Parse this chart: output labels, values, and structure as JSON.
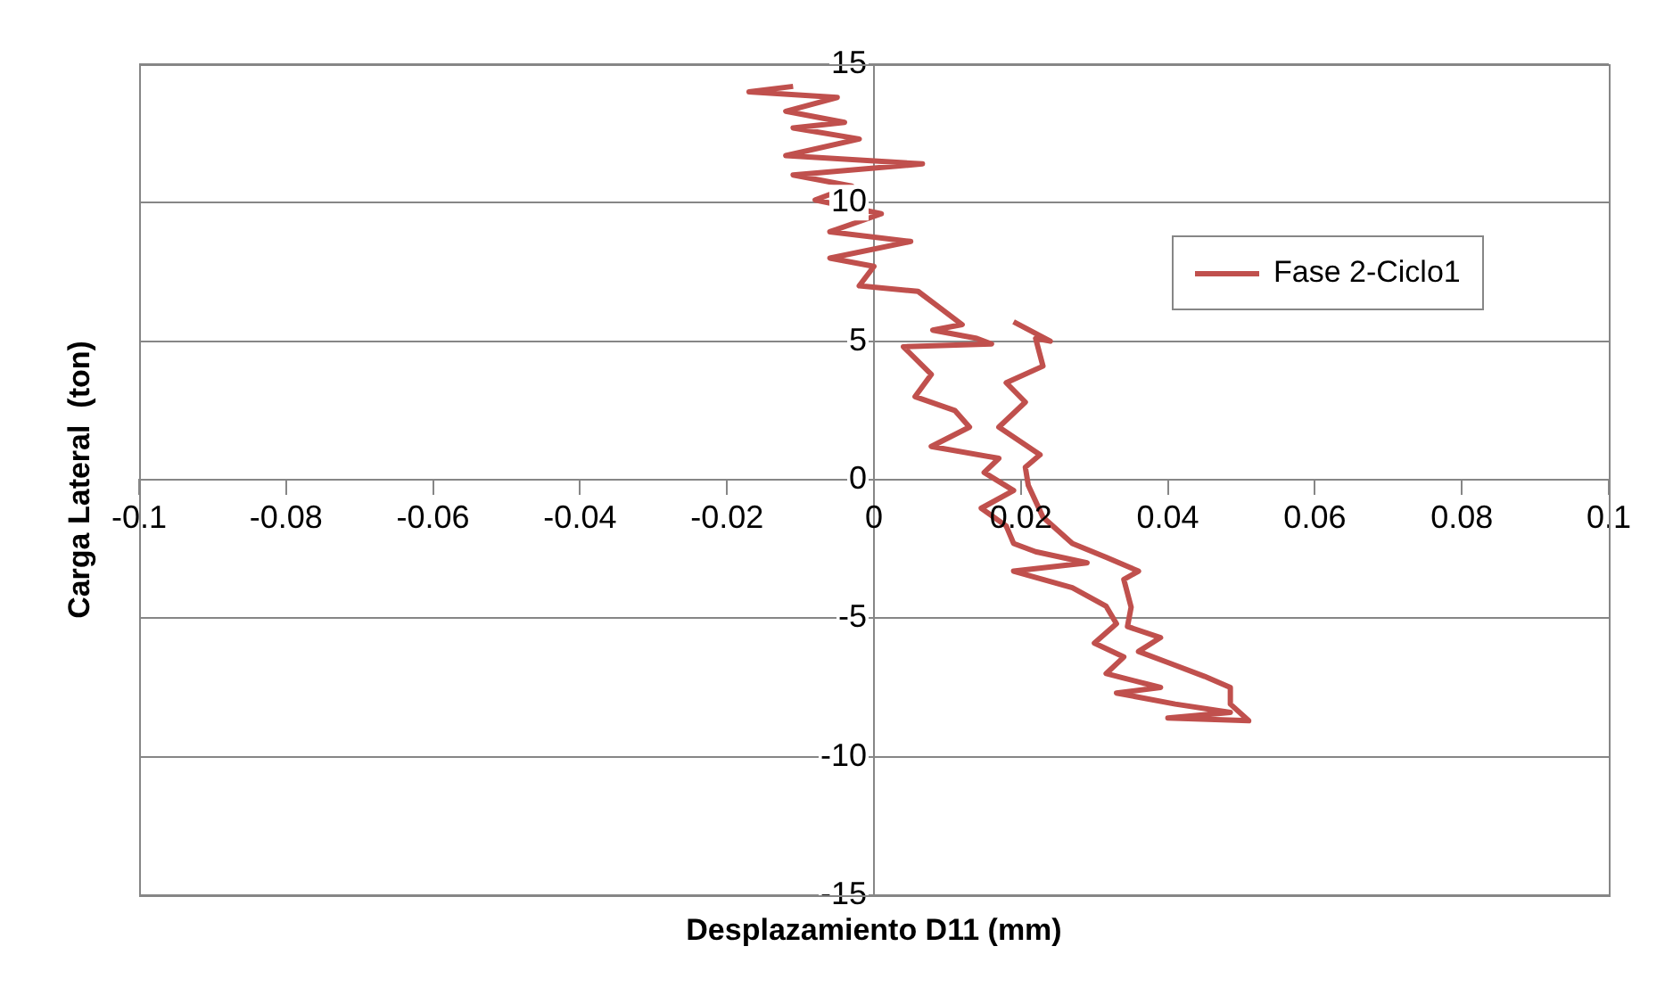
{
  "chart_data": {
    "type": "line",
    "xlabel": "Desplazamiento D11 (mm)",
    "ylabel": "Carga Lateral  (ton)",
    "xlim": [
      -0.1,
      0.1
    ],
    "ylim": [
      -15,
      15
    ],
    "xticks": [
      {
        "value": -0.1,
        "label": "-0.1"
      },
      {
        "value": -0.08,
        "label": "-0.08"
      },
      {
        "value": -0.06,
        "label": "-0.06"
      },
      {
        "value": -0.04,
        "label": "-0.04"
      },
      {
        "value": -0.02,
        "label": "-0.02"
      },
      0,
      {
        "value": 0.02,
        "label": "0.02"
      },
      {
        "value": 0.04,
        "label": "0.04"
      },
      {
        "value": 0.06,
        "label": "0.06"
      },
      {
        "value": 0.08,
        "label": "0.08"
      },
      {
        "value": 0.1,
        "label": "0.1"
      }
    ],
    "yticks": [
      -15,
      -10,
      -5,
      0,
      5,
      10,
      15
    ],
    "grid": "y",
    "legend": "right",
    "marker": "none",
    "line_style": "solid",
    "series": [
      {
        "name": "Fase 2-Ciclo1",
        "color": "#c0504d",
        "x": [
          -0.011,
          -0.017,
          -0.005,
          -0.012,
          -0.004,
          -0.011,
          -0.002,
          -0.012,
          0.0066,
          -0.011,
          -0.003,
          -0.008,
          0.001,
          -0.006,
          0.005,
          -0.006,
          0,
          -0.002,
          0.006,
          0.009,
          0.012,
          0.008,
          0.014,
          0.016,
          0.004,
          0.0078,
          0.0056,
          0.011,
          0.013,
          0.0078,
          0.017,
          0.015,
          0.019,
          0.0146,
          0.018,
          0.019,
          0.022,
          0.029,
          0.019,
          0.027,
          0.0316,
          0.033,
          0.03,
          0.034,
          0.0316,
          0.039,
          0.033,
          0.041,
          0.0485,
          0.04,
          0.051,
          0.0485,
          0.0485,
          0.045,
          0.04,
          0.036,
          0.039,
          0.0345,
          0.035,
          0.034,
          0.036,
          0.0316,
          0.027,
          0.023,
          0.021,
          0.0206,
          0.0226,
          0.017,
          0.0206,
          0.018,
          0.023,
          0.022,
          0.024,
          0.019
        ],
        "values": [
          14.2,
          14.0,
          13.8,
          13.3,
          12.9,
          12.7,
          12.3,
          11.7,
          11.4,
          11.0,
          10.6,
          10.1,
          9.6,
          8.95,
          8.6,
          8.0,
          7.7,
          7.0,
          6.8,
          6.2,
          5.6,
          5.4,
          5.1,
          4.9,
          4.8,
          3.8,
          3.0,
          2.5,
          1.9,
          1.2,
          0.77,
          0.26,
          -0.39,
          -1.03,
          -1.67,
          -2.3,
          -2.6,
          -3.0,
          -3.3,
          -3.9,
          -4.57,
          -5.2,
          -5.9,
          -6.4,
          -7.0,
          -7.5,
          -7.7,
          -8.1,
          -8.4,
          -8.6,
          -8.7,
          -8.1,
          -7.5,
          -7.1,
          -6.6,
          -6.2,
          -5.7,
          -5.3,
          -4.6,
          -3.6,
          -3.3,
          -2.8,
          -2.3,
          -1.35,
          -0.2,
          0.45,
          0.9,
          1.9,
          2.8,
          3.5,
          4.1,
          5.1,
          5.0,
          5.7
        ]
      }
    ]
  }
}
